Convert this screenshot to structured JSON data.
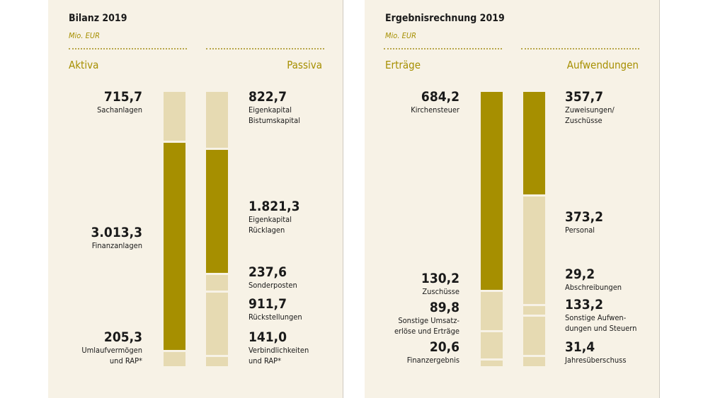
{
  "colors": {
    "dark": "#a68f00",
    "light": "#e6dab2"
  },
  "chart_data": [
    {
      "type": "bar",
      "title": "Bilanz 2019",
      "unit": "Mio. EUR",
      "stacked": true,
      "series": [
        {
          "name": "Aktiva",
          "items": [
            {
              "label": "Sachanlagen",
              "value": 715.7,
              "display": "715,7",
              "highlight": false
            },
            {
              "label": "Finanzanlagen",
              "value": 3013.3,
              "display": "3.013,3",
              "highlight": true
            },
            {
              "label": "Umlaufvermögen\nund RAP*",
              "value": 205.3,
              "display": "205,3",
              "highlight": false
            }
          ]
        },
        {
          "name": "Passiva",
          "items": [
            {
              "label": "Eigenkapital\nBistumskapital",
              "value": 822.7,
              "display": "822,7",
              "highlight": false
            },
            {
              "label": "Eigenkapital\nRücklagen",
              "value": 1821.3,
              "display": "1.821,3",
              "highlight": true
            },
            {
              "label": "Sonderposten",
              "value": 237.6,
              "display": "237,6",
              "highlight": false
            },
            {
              "label": "Rückstellungen",
              "value": 911.7,
              "display": "911,7",
              "highlight": false
            },
            {
              "label": "Verbindlichkeiten\nund RAP*",
              "value": 141.0,
              "display": "141,0",
              "highlight": false
            }
          ]
        }
      ]
    },
    {
      "type": "bar",
      "title": "Ergebnisrechnung 2019",
      "unit": "Mio. EUR",
      "stacked": true,
      "series": [
        {
          "name": "Erträge",
          "items": [
            {
              "label": "Kirchensteuer",
              "value": 684.2,
              "display": "684,2",
              "highlight": true
            },
            {
              "label": "Zuschüsse",
              "value": 130.2,
              "display": "130,2",
              "highlight": false
            },
            {
              "label": "Sonstige Umsatz-\nerlöse und Erträge",
              "value": 89.8,
              "display": "89,8",
              "highlight": false
            },
            {
              "label": "Finanzergebnis",
              "value": 20.6,
              "display": "20,6",
              "highlight": false
            }
          ]
        },
        {
          "name": "Aufwendungen",
          "items": [
            {
              "label": "Zuweisungen/\nZuschüsse",
              "value": 357.7,
              "display": "357,7",
              "highlight": true
            },
            {
              "label": "Personal",
              "value": 373.2,
              "display": "373,2",
              "highlight": false
            },
            {
              "label": "Abschreibungen",
              "value": 29.2,
              "display": "29,2",
              "highlight": false
            },
            {
              "label": "Sonstige Aufwen-\ndungen und Steuern",
              "value": 133.2,
              "display": "133,2",
              "highlight": false
            },
            {
              "label": "Jahresüberschuss",
              "value": 31.4,
              "display": "31,4",
              "highlight": false
            }
          ]
        }
      ]
    }
  ]
}
